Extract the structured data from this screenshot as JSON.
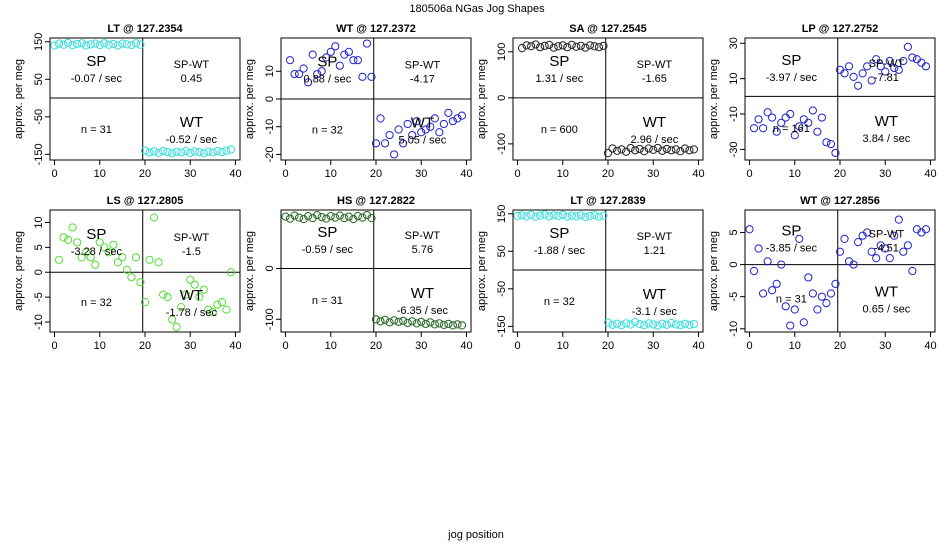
{
  "figure": {
    "title": "180506a   NGas Jog Shapes",
    "xlabel": "jog position"
  },
  "chart_data": [
    {
      "type": "scatter",
      "title": "LT @ 127.2354",
      "ylabel": "approx. per meg",
      "xlim": [
        -1,
        41
      ],
      "ylim": [
        -165,
        160
      ],
      "xticks": [
        0,
        10,
        20,
        30,
        40
      ],
      "yticks": [
        -150,
        -50,
        50,
        150
      ],
      "color": "#33dddd",
      "annotations": {
        "sp": "SP",
        "sp_rate": "-0.07 / sec",
        "spwt": "SP-WT",
        "spwt_val": "0.45",
        "n": "n = 31",
        "wt": "WT",
        "wt_rate": "-0.52 / sec"
      },
      "series": [
        {
          "x": [
            0,
            1,
            2,
            3,
            4,
            5,
            6,
            7,
            8,
            9,
            10,
            11,
            12,
            13,
            14,
            15,
            16,
            17,
            18,
            19
          ],
          "y": [
            140,
            145,
            142,
            147,
            141,
            144,
            146,
            140,
            143,
            145,
            141,
            146,
            142,
            144,
            140,
            145,
            143,
            141,
            146,
            142
          ]
        },
        {
          "x": [
            20,
            21,
            22,
            23,
            24,
            25,
            26,
            27,
            28,
            29,
            30,
            31,
            32,
            33,
            34,
            35,
            36,
            37,
            38,
            39
          ],
          "y": [
            -140,
            -145,
            -142,
            -146,
            -141,
            -144,
            -147,
            -143,
            -145,
            -141,
            -146,
            -142,
            -144,
            -147,
            -143,
            -145,
            -141,
            -144,
            -140,
            -137
          ]
        }
      ]
    },
    {
      "type": "scatter",
      "title": "WT @ 127.2372",
      "ylabel": "approx. per meg",
      "xlim": [
        -1,
        41
      ],
      "ylim": [
        -22,
        22
      ],
      "xticks": [
        0,
        10,
        20,
        30,
        40
      ],
      "yticks": [
        -20,
        -10,
        0,
        10
      ],
      "color": "#2222cc",
      "annotations": {
        "sp": "SP",
        "sp_rate": "0.88 / sec",
        "spwt": "SP-WT",
        "spwt_val": "-4.17",
        "n": "n = 32",
        "wt": "WT",
        "wt_rate": "5.05 / sec"
      },
      "series": [
        {
          "x": [
            1,
            2,
            3,
            4,
            5,
            6,
            7,
            8,
            9,
            10,
            11,
            12,
            13,
            14,
            15,
            16,
            17,
            18,
            19
          ],
          "y": [
            14,
            9,
            9,
            11,
            6,
            16,
            9,
            10,
            15,
            17,
            19,
            12,
            16,
            17,
            14,
            14,
            8,
            20,
            8
          ]
        },
        {
          "x": [
            20,
            21,
            22,
            23,
            24,
            25,
            26,
            27,
            28,
            29,
            30,
            31,
            32,
            33,
            34,
            35,
            36,
            37,
            38,
            39
          ],
          "y": [
            -16,
            -7,
            -16,
            -13,
            -20,
            -11,
            -16,
            -9,
            -13,
            -8,
            -12,
            -11,
            -10,
            -7,
            -12,
            -9,
            -5,
            -8,
            -7,
            -6
          ]
        }
      ]
    },
    {
      "type": "scatter",
      "title": "SA @ 127.2545",
      "ylabel": "approx. per meg",
      "xlim": [
        -1,
        41
      ],
      "ylim": [
        -135,
        130
      ],
      "xticks": [
        0,
        10,
        20,
        30,
        40
      ],
      "yticks": [
        -100,
        0,
        100
      ],
      "color": "#222222",
      "annotations": {
        "sp": "SP",
        "sp_rate": "1.31 / sec",
        "spwt": "SP-WT",
        "spwt_val": "-1.65",
        "n": "n = 600",
        "wt": "WT",
        "wt_rate": "2.96 / sec"
      },
      "series": [
        {
          "x": [
            1,
            2,
            3,
            4,
            5,
            6,
            7,
            8,
            9,
            10,
            11,
            12,
            13,
            14,
            15,
            16,
            17,
            18,
            19
          ],
          "y": [
            108,
            114,
            112,
            116,
            110,
            113,
            115,
            109,
            112,
            114,
            110,
            115,
            111,
            113,
            109,
            114,
            112,
            110,
            113
          ]
        },
        {
          "x": [
            20,
            21,
            22,
            23,
            24,
            25,
            26,
            27,
            28,
            29,
            30,
            31,
            32,
            33,
            34,
            35,
            36,
            37,
            38,
            39
          ],
          "y": [
            -120,
            -110,
            -115,
            -112,
            -117,
            -109,
            -114,
            -111,
            -116,
            -110,
            -113,
            -109,
            -115,
            -111,
            -114,
            -112,
            -116,
            -110,
            -114,
            -112
          ]
        }
      ]
    },
    {
      "type": "scatter",
      "title": "LP @ 127.2752",
      "ylabel": "approx. per meg",
      "xlim": [
        -1,
        41
      ],
      "ylim": [
        -36,
        33
      ],
      "xticks": [
        0,
        10,
        20,
        30,
        40
      ],
      "yticks": [
        -30,
        -10,
        10,
        30
      ],
      "color": "#2222cc",
      "annotations": {
        "sp": "SP",
        "sp_rate": "-3.97 / sec",
        "spwt": "SP-WT",
        "spwt_val": "-7.81",
        "n": "n = 161",
        "wt": "WT",
        "wt_rate": "3.84 / sec"
      },
      "series": [
        {
          "x": [
            1,
            2,
            3,
            4,
            5,
            6,
            7,
            8,
            9,
            10,
            11,
            12,
            13,
            14,
            15,
            16,
            17,
            18,
            19
          ],
          "y": [
            -18,
            -13,
            -18,
            -9,
            -12,
            -20,
            -15,
            -12,
            -10,
            -22,
            -17,
            -13,
            -15,
            -8,
            -20,
            -12,
            -26,
            -27,
            -32
          ]
        },
        {
          "x": [
            20,
            21,
            22,
            23,
            24,
            25,
            26,
            27,
            28,
            29,
            30,
            31,
            32,
            33,
            34,
            35,
            36,
            37,
            38,
            39
          ],
          "y": [
            15,
            13,
            17,
            11,
            6,
            13,
            17,
            9,
            21,
            17,
            14,
            20,
            16,
            15,
            20,
            28,
            22,
            21,
            19,
            17
          ]
        }
      ]
    },
    {
      "type": "scatter",
      "title": "LS @ 127.2805",
      "ylabel": "approx. per meg",
      "xlim": [
        -1,
        41
      ],
      "ylim": [
        -12,
        12.5
      ],
      "xticks": [
        0,
        10,
        20,
        30,
        40
      ],
      "yticks": [
        -10,
        -5,
        0,
        5,
        10
      ],
      "color": "#55dd33",
      "annotations": {
        "sp": "SP",
        "sp_rate": "-3.28 / sec",
        "spwt": "SP-WT",
        "spwt_val": "-1.5",
        "n": "n = 32",
        "wt": "WT",
        "wt_rate": "-1.78 / sec"
      },
      "series": [
        {
          "x": [
            1,
            2,
            3,
            4,
            5,
            6,
            7,
            8,
            9,
            10,
            11,
            12,
            13,
            14,
            15,
            16,
            17,
            18,
            19
          ],
          "y": [
            2.5,
            7,
            6.5,
            9,
            6,
            3,
            4,
            3,
            1.5,
            6,
            5,
            4,
            5.5,
            2,
            3,
            0.5,
            -1,
            3,
            -2
          ]
        },
        {
          "x": [
            20,
            21,
            22,
            23,
            24,
            25,
            26,
            27,
            28,
            29,
            30,
            31,
            32,
            33,
            34,
            35,
            36,
            37,
            38,
            39
          ],
          "y": [
            -6,
            2.5,
            11,
            2,
            -4.5,
            -5,
            -9.5,
            -11,
            -7,
            -4.5,
            -1.5,
            -2.5,
            -5,
            -3.5,
            -7.5,
            -8,
            -6.5,
            -6,
            -7.5,
            0
          ]
        }
      ]
    },
    {
      "type": "scatter",
      "title": "HS @ 127.2822",
      "ylabel": "approx. per meg",
      "xlim": [
        -1,
        41
      ],
      "ylim": [
        -125,
        115
      ],
      "xticks": [
        0,
        10,
        20,
        30,
        40
      ],
      "yticks": [
        -100,
        0
      ],
      "color": "#226622",
      "annotations": {
        "sp": "SP",
        "sp_rate": "-0.59 / sec",
        "spwt": "SP-WT",
        "spwt_val": "5.76",
        "n": "n = 31",
        "wt": "WT",
        "wt_rate": "-6.35 / sec"
      },
      "series": [
        {
          "x": [
            0,
            1,
            2,
            3,
            4,
            5,
            6,
            7,
            8,
            9,
            10,
            11,
            12,
            13,
            14,
            15,
            16,
            17,
            18,
            19
          ],
          "y": [
            102,
            98,
            104,
            100,
            97,
            103,
            99,
            105,
            101,
            98,
            103,
            100,
            104,
            99,
            102,
            97,
            103,
            100,
            105,
            99
          ]
        },
        {
          "x": [
            20,
            21,
            22,
            23,
            24,
            25,
            26,
            27,
            28,
            29,
            30,
            31,
            32,
            33,
            34,
            35,
            36,
            37,
            38,
            39
          ],
          "y": [
            -100,
            -104,
            -101,
            -106,
            -102,
            -105,
            -103,
            -107,
            -104,
            -108,
            -105,
            -109,
            -106,
            -110,
            -108,
            -111,
            -109,
            -112,
            -110,
            -112
          ]
        }
      ]
    },
    {
      "type": "scatter",
      "title": "LT @ 127.2839",
      "ylabel": "approx. per meg",
      "xlim": [
        -1,
        41
      ],
      "ylim": [
        -165,
        160
      ],
      "xticks": [
        0,
        10,
        20,
        30,
        40
      ],
      "yticks": [
        -150,
        -50,
        50,
        150
      ],
      "color": "#33dddd",
      "annotations": {
        "sp": "SP",
        "sp_rate": "-1.88 / sec",
        "spwt": "SP-WT",
        "spwt_val": "1.21",
        "n": "n = 32",
        "wt": "WT",
        "wt_rate": "-3.1 / sec"
      },
      "series": [
        {
          "x": [
            0,
            1,
            2,
            3,
            4,
            5,
            6,
            7,
            8,
            9,
            10,
            11,
            12,
            13,
            14,
            15,
            16,
            17,
            18,
            19
          ],
          "y": [
            144,
            146,
            143,
            147,
            142,
            145,
            148,
            143,
            146,
            144,
            147,
            142,
            145,
            143,
            146,
            141,
            144,
            146,
            142,
            145
          ]
        },
        {
          "x": [
            20,
            21,
            22,
            23,
            24,
            25,
            26,
            27,
            28,
            29,
            30,
            31,
            32,
            33,
            34,
            35,
            36,
            37,
            38,
            39
          ],
          "y": [
            -140,
            -146,
            -143,
            -147,
            -142,
            -145,
            -138,
            -144,
            -147,
            -142,
            -145,
            -148,
            -143,
            -146,
            -141,
            -145,
            -147,
            -143,
            -146,
            -144
          ]
        }
      ]
    },
    {
      "type": "scatter",
      "title": "WT @ 127.2856",
      "ylabel": "approx. per meg",
      "xlim": [
        -1,
        41
      ],
      "ylim": [
        -10.5,
        8.5
      ],
      "xticks": [
        0,
        10,
        20,
        30,
        40
      ],
      "yticks": [
        -10,
        -5,
        0,
        5
      ],
      "color": "#2222cc",
      "annotations": {
        "sp": "SP",
        "sp_rate": "-3.85 / sec",
        "spwt": "SP-WT",
        "spwt_val": "-4.51",
        "n": "n = 31",
        "wt": "WT",
        "wt_rate": "0.65 / sec"
      },
      "series": [
        {
          "x": [
            0,
            1,
            2,
            3,
            4,
            5,
            6,
            7,
            8,
            9,
            10,
            11,
            12,
            13,
            14,
            15,
            16,
            17,
            18,
            19
          ],
          "y": [
            5.5,
            -1,
            2.5,
            -4.5,
            0.5,
            -4,
            -3,
            0,
            -6.5,
            -9.5,
            -7,
            4,
            -9,
            -2,
            -4.5,
            -7,
            -5,
            -6,
            -4.5,
            -3
          ]
        },
        {
          "x": [
            20,
            21,
            22,
            23,
            24,
            25,
            26,
            27,
            28,
            29,
            30,
            31,
            32,
            33,
            34,
            35,
            36,
            37,
            38,
            39
          ],
          "y": [
            2,
            4,
            0.5,
            0,
            3.5,
            4.5,
            5,
            2,
            1,
            3,
            2.5,
            1,
            4.5,
            7,
            2,
            3,
            -1,
            5.5,
            5,
            5.5
          ]
        }
      ]
    }
  ]
}
